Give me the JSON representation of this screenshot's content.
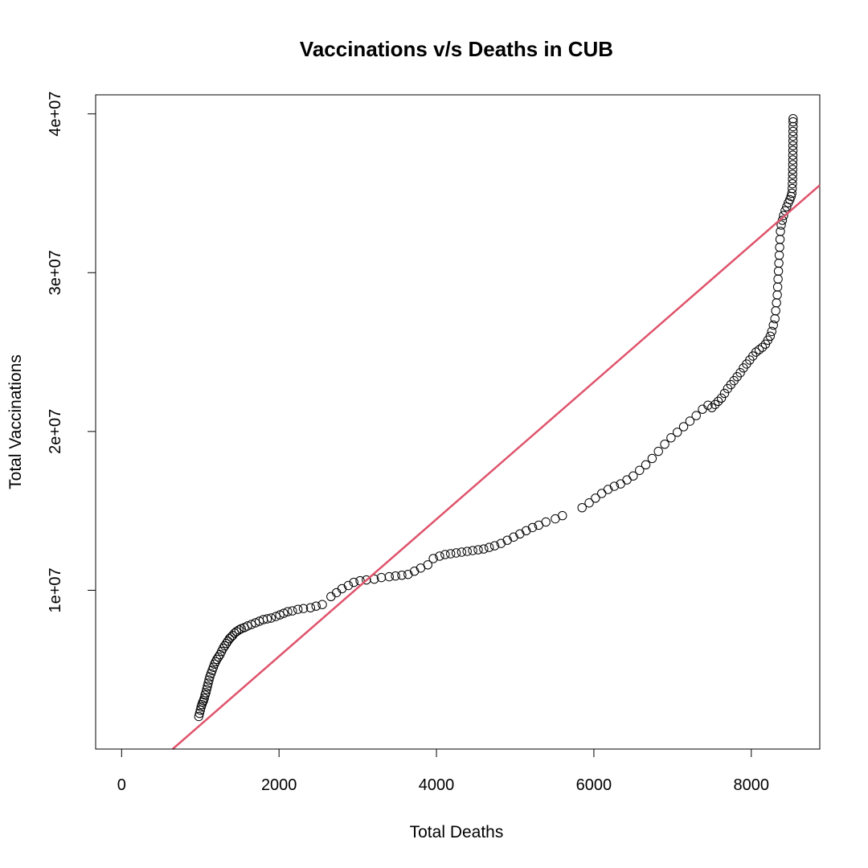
{
  "chart_data": {
    "type": "scatter",
    "title": "Vaccinations v/s Deaths in CUB",
    "xlabel": "Total Deaths",
    "ylabel": "Total Vaccinations",
    "xlim": [
      -330,
      8870
    ],
    "ylim": [
      0,
      41200000
    ],
    "x_ticks": [
      0,
      2000,
      4000,
      6000,
      8000
    ],
    "x_tick_labels": [
      "0",
      "2000",
      "4000",
      "6000",
      "8000"
    ],
    "y_ticks": [
      10000000,
      20000000,
      30000000,
      40000000
    ],
    "y_tick_labels": [
      "1e+07",
      "2e+07",
      "3e+07",
      "4e+07"
    ],
    "grid": false,
    "point_color": "#000000",
    "fit_line_color": "#DF536B",
    "fit_line": {
      "slope": 4319,
      "intercept": -2800000
    },
    "points": [
      [
        980,
        2050000
      ],
      [
        990,
        2250000
      ],
      [
        1000,
        2450000
      ],
      [
        1010,
        2650000
      ],
      [
        1020,
        2800000
      ],
      [
        1030,
        2950000
      ],
      [
        1040,
        3050000
      ],
      [
        1050,
        3200000
      ],
      [
        1060,
        3400000
      ],
      [
        1070,
        3550000
      ],
      [
        1080,
        3750000
      ],
      [
        1090,
        3950000
      ],
      [
        1100,
        4150000
      ],
      [
        1110,
        4350000
      ],
      [
        1120,
        4550000
      ],
      [
        1135,
        4750000
      ],
      [
        1150,
        4950000
      ],
      [
        1165,
        5150000
      ],
      [
        1180,
        5350000
      ],
      [
        1195,
        5500000
      ],
      [
        1210,
        5650000
      ],
      [
        1230,
        5800000
      ],
      [
        1250,
        5950000
      ],
      [
        1270,
        6150000
      ],
      [
        1290,
        6350000
      ],
      [
        1310,
        6500000
      ],
      [
        1330,
        6650000
      ],
      [
        1350,
        6800000
      ],
      [
        1370,
        6950000
      ],
      [
        1390,
        7050000
      ],
      [
        1410,
        7150000
      ],
      [
        1435,
        7300000
      ],
      [
        1460,
        7400000
      ],
      [
        1490,
        7500000
      ],
      [
        1520,
        7580000
      ],
      [
        1560,
        7650000
      ],
      [
        1600,
        7750000
      ],
      [
        1650,
        7850000
      ],
      [
        1700,
        7950000
      ],
      [
        1750,
        8050000
      ],
      [
        1800,
        8150000
      ],
      [
        1850,
        8200000
      ],
      [
        1900,
        8250000
      ],
      [
        1960,
        8350000
      ],
      [
        2010,
        8450000
      ],
      [
        2060,
        8550000
      ],
      [
        2110,
        8650000
      ],
      [
        2170,
        8700000
      ],
      [
        2240,
        8800000
      ],
      [
        2310,
        8850000
      ],
      [
        2400,
        8900000
      ],
      [
        2470,
        9000000
      ],
      [
        2550,
        9100000
      ],
      [
        2660,
        9600000
      ],
      [
        2730,
        9850000
      ],
      [
        2800,
        10100000
      ],
      [
        2880,
        10300000
      ],
      [
        2950,
        10500000
      ],
      [
        3030,
        10600000
      ],
      [
        3110,
        10650000
      ],
      [
        3210,
        10700000
      ],
      [
        3300,
        10800000
      ],
      [
        3400,
        10850000
      ],
      [
        3480,
        10900000
      ],
      [
        3560,
        10950000
      ],
      [
        3640,
        11000000
      ],
      [
        3720,
        11200000
      ],
      [
        3800,
        11400000
      ],
      [
        3890,
        11600000
      ],
      [
        3960,
        12000000
      ],
      [
        4040,
        12150000
      ],
      [
        4110,
        12250000
      ],
      [
        4180,
        12300000
      ],
      [
        4250,
        12350000
      ],
      [
        4320,
        12400000
      ],
      [
        4390,
        12450000
      ],
      [
        4460,
        12500000
      ],
      [
        4530,
        12550000
      ],
      [
        4600,
        12600000
      ],
      [
        4670,
        12700000
      ],
      [
        4740,
        12800000
      ],
      [
        4820,
        12950000
      ],
      [
        4900,
        13150000
      ],
      [
        4980,
        13350000
      ],
      [
        5060,
        13550000
      ],
      [
        5140,
        13750000
      ],
      [
        5220,
        13950000
      ],
      [
        5300,
        14100000
      ],
      [
        5390,
        14300000
      ],
      [
        5510,
        14500000
      ],
      [
        5600,
        14700000
      ],
      [
        5850,
        15200000
      ],
      [
        5940,
        15500000
      ],
      [
        6020,
        15800000
      ],
      [
        6100,
        16100000
      ],
      [
        6180,
        16350000
      ],
      [
        6260,
        16550000
      ],
      [
        6340,
        16700000
      ],
      [
        6420,
        16950000
      ],
      [
        6500,
        17200000
      ],
      [
        6580,
        17550000
      ],
      [
        6660,
        17900000
      ],
      [
        6740,
        18300000
      ],
      [
        6820,
        18750000
      ],
      [
        6900,
        19200000
      ],
      [
        6980,
        19600000
      ],
      [
        7060,
        19950000
      ],
      [
        7140,
        20300000
      ],
      [
        7220,
        20650000
      ],
      [
        7300,
        21000000
      ],
      [
        7380,
        21400000
      ],
      [
        7450,
        21650000
      ],
      [
        7500,
        21500000
      ],
      [
        7540,
        21700000
      ],
      [
        7580,
        21900000
      ],
      [
        7620,
        22100000
      ],
      [
        7660,
        22400000
      ],
      [
        7700,
        22700000
      ],
      [
        7740,
        22950000
      ],
      [
        7780,
        23200000
      ],
      [
        7820,
        23450000
      ],
      [
        7860,
        23700000
      ],
      [
        7900,
        24000000
      ],
      [
        7940,
        24250000
      ],
      [
        7980,
        24500000
      ],
      [
        8020,
        24750000
      ],
      [
        8060,
        25000000
      ],
      [
        8100,
        25150000
      ],
      [
        8140,
        25300000
      ],
      [
        8180,
        25500000
      ],
      [
        8210,
        25750000
      ],
      [
        8240,
        26000000
      ],
      [
        8260,
        26300000
      ],
      [
        8280,
        26700000
      ],
      [
        8300,
        27100000
      ],
      [
        8310,
        27600000
      ],
      [
        8320,
        28100000
      ],
      [
        8330,
        28600000
      ],
      [
        8335,
        29100000
      ],
      [
        8340,
        29600000
      ],
      [
        8345,
        30100000
      ],
      [
        8350,
        30600000
      ],
      [
        8355,
        31100000
      ],
      [
        8360,
        31600000
      ],
      [
        8365,
        32100000
      ],
      [
        8370,
        32600000
      ],
      [
        8380,
        33000000
      ],
      [
        8395,
        33300000
      ],
      [
        8410,
        33600000
      ],
      [
        8430,
        33900000
      ],
      [
        8450,
        34150000
      ],
      [
        8470,
        34400000
      ],
      [
        8490,
        34600000
      ],
      [
        8505,
        34800000
      ],
      [
        8515,
        35000000
      ],
      [
        8520,
        35300000
      ],
      [
        8522,
        35600000
      ],
      [
        8524,
        35900000
      ],
      [
        8525,
        36200000
      ],
      [
        8526,
        36500000
      ],
      [
        8527,
        36800000
      ],
      [
        8528,
        37100000
      ],
      [
        8528,
        37400000
      ],
      [
        8529,
        37700000
      ],
      [
        8529,
        38000000
      ],
      [
        8530,
        38300000
      ],
      [
        8530,
        38600000
      ],
      [
        8530,
        38900000
      ],
      [
        8531,
        39200000
      ],
      [
        8531,
        39500000
      ],
      [
        8531,
        39700000
      ]
    ]
  }
}
